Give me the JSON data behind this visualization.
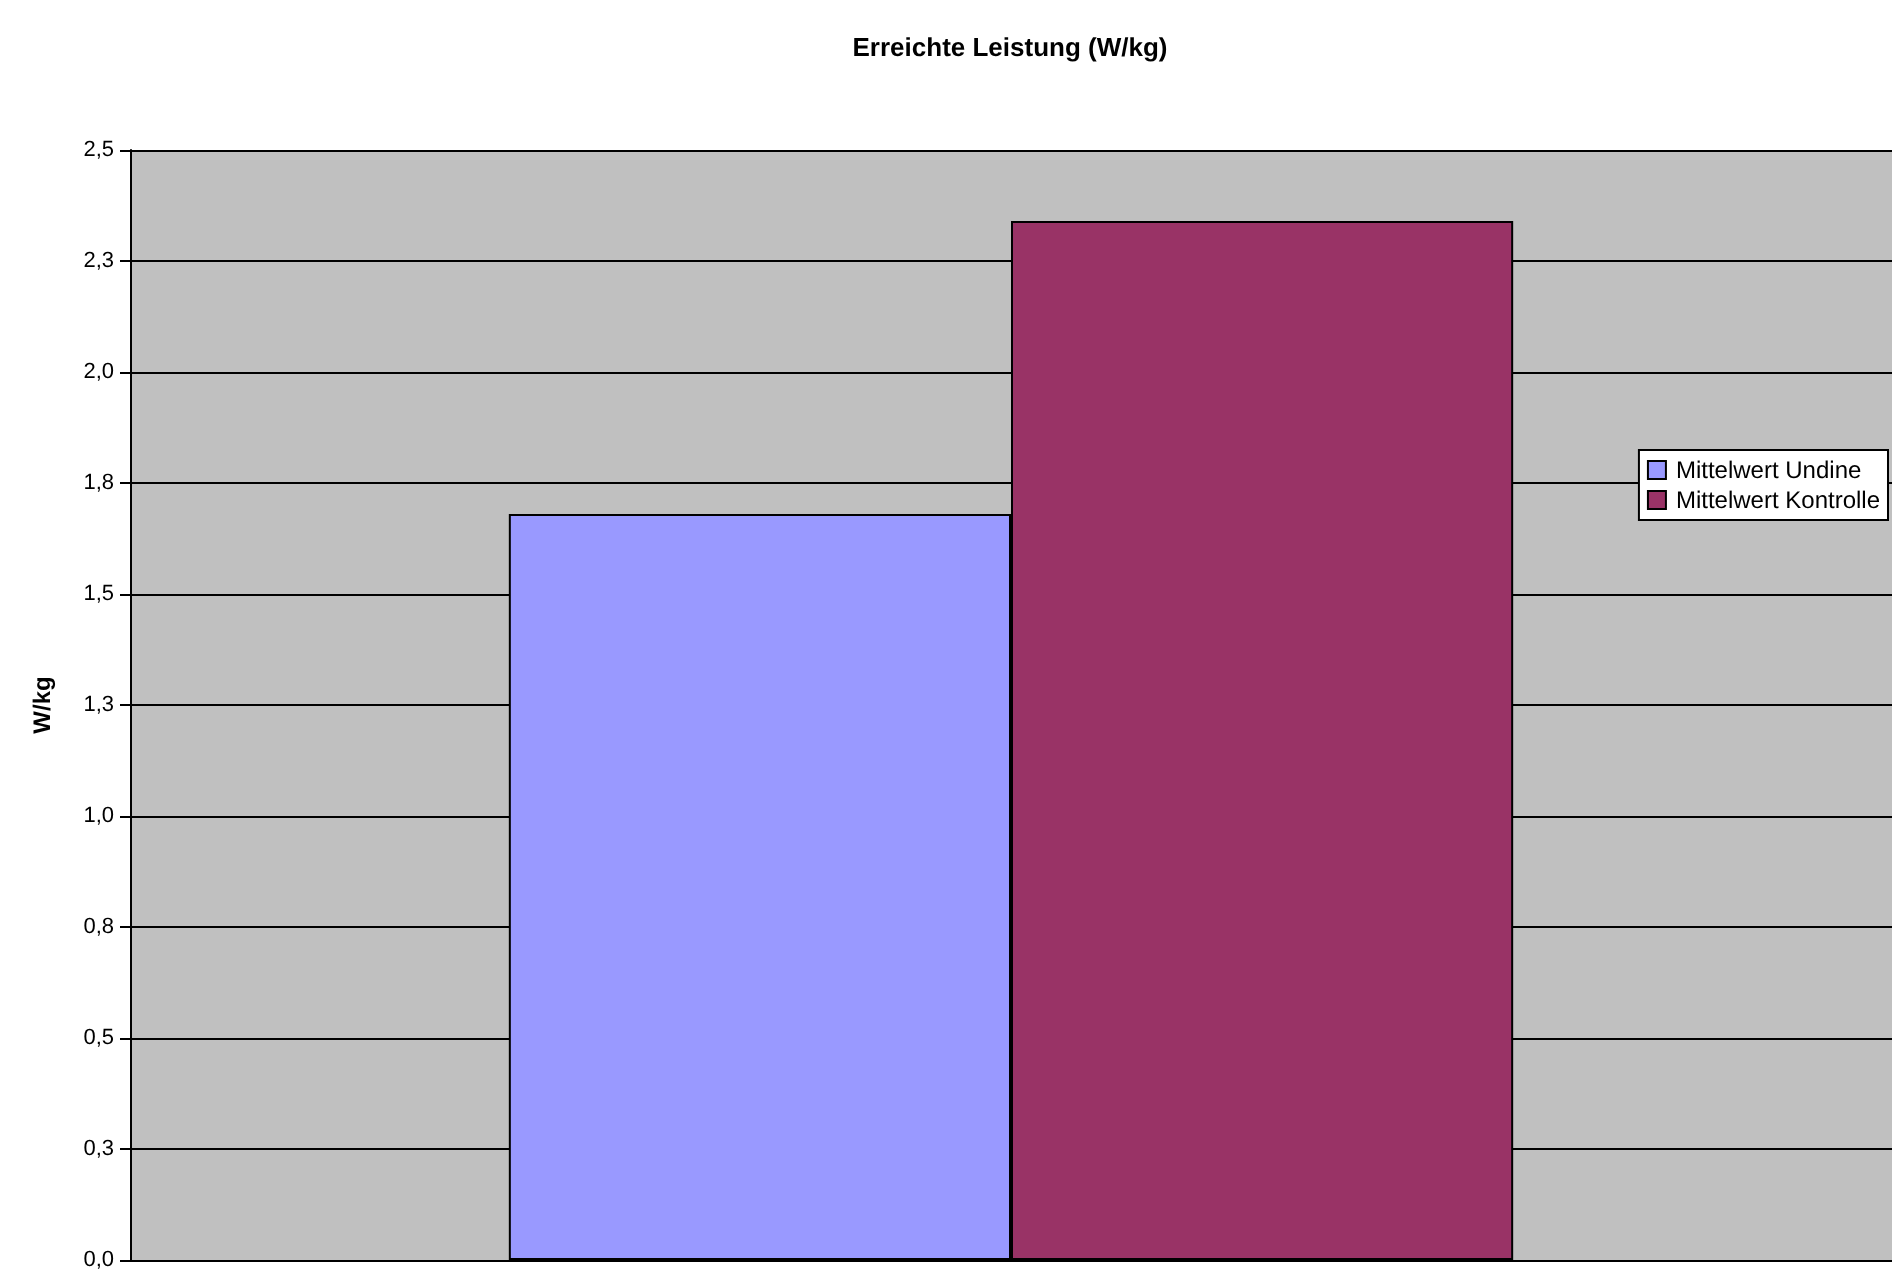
{
  "chart_data": {
    "type": "bar",
    "title": "Erreichte Leistung (W/kg)",
    "ylabel": "W/kg",
    "categories": [
      null
    ],
    "series": [
      {
        "name": "Mittelwert Undine",
        "color": "#9999ff",
        "values": [
          1.68
        ]
      },
      {
        "name": "Mittelwert Kontrolle",
        "color": "#993366",
        "values": [
          2.34
        ]
      }
    ],
    "ylim": [
      0,
      2.5
    ],
    "yticks": [
      {
        "value": 0,
        "label": "0,0"
      },
      {
        "value": 0.25,
        "label": "0,3"
      },
      {
        "value": 0.5,
        "label": "0,5"
      },
      {
        "value": 0.75,
        "label": "0,8"
      },
      {
        "value": 1,
        "label": "1,0"
      },
      {
        "value": 1.25,
        "label": "1,3"
      },
      {
        "value": 1.5,
        "label": "1,5"
      },
      {
        "value": 1.75,
        "label": "1,8"
      },
      {
        "value": 2,
        "label": "2,0"
      },
      {
        "value": 2.25,
        "label": "2,3"
      },
      {
        "value": 2.5,
        "label": "2,5"
      }
    ],
    "grid": "y",
    "legend": "right"
  }
}
